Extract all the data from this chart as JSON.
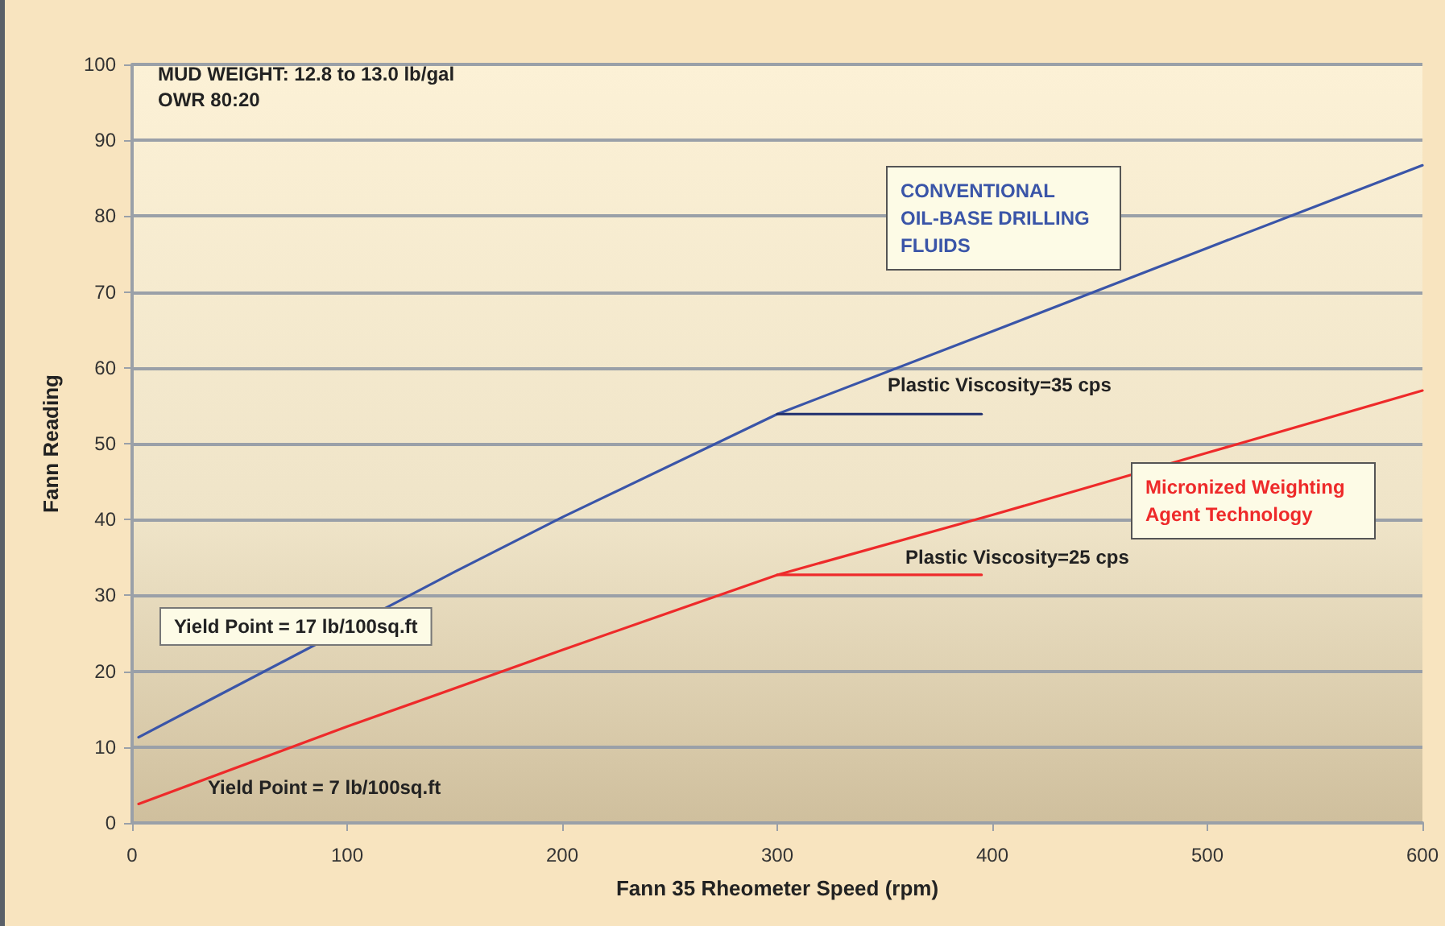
{
  "chart_data": {
    "type": "line",
    "xlabel": "Fann 35 Rheometer Speed (rpm)",
    "ylabel": "Fann Reading",
    "xlim": [
      0,
      600
    ],
    "xticks": [
      0,
      100,
      200,
      300,
      400,
      500,
      600
    ],
    "ylim": [
      0,
      100
    ],
    "yticks": [
      0,
      10,
      20,
      30,
      40,
      50,
      60,
      70,
      80,
      90,
      100
    ],
    "grid": "y",
    "marker": "none",
    "series": [
      {
        "name": "CONVENTIONAL OIL-BASE DRILLING FLUIDS",
        "color": "#3a55a8",
        "x": [
          3,
          150,
          200,
          300,
          400,
          500,
          600
        ],
        "values": [
          11.3,
          33.1,
          40.3,
          53.9,
          64.8,
          75.8,
          86.7
        ]
      },
      {
        "name": "Micronized Weighting Agent Technology",
        "color": "#ee2a2a",
        "x": [
          3,
          100,
          200,
          300,
          400,
          500,
          600
        ],
        "values": [
          2.5,
          12.7,
          22.8,
          32.7,
          40.6,
          48.8,
          57.0
        ]
      },
      {
        "color": "#1f2f6e",
        "x": [
          300,
          395
        ],
        "values": [
          53.9,
          53.9
        ]
      },
      {
        "color": "#ee2a2a",
        "x": [
          300,
          395
        ],
        "values": [
          32.7,
          32.7
        ]
      }
    ],
    "annotations": [
      "MUD WEIGHT: 12.8 to 13.0 lb/gal",
      "OWR 80:20",
      "Plastic Viscosity=35 cps",
      "Plastic Viscosity=25 cps",
      "Yield Point = 17 lb/100sq.ft",
      "Yield Point = 7 lb/100sq.ft"
    ]
  }
}
